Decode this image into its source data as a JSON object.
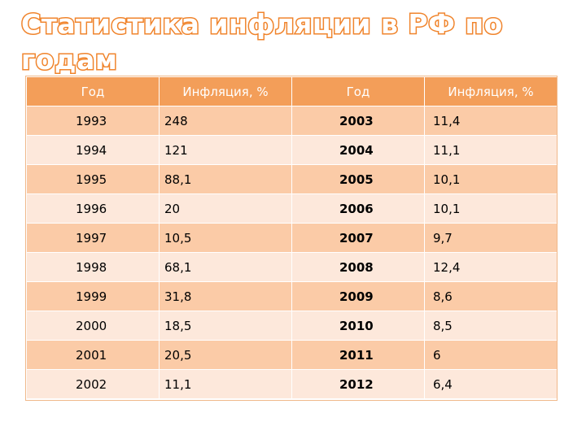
{
  "slide": {
    "title": "Статистика инфляции в РФ по годам"
  },
  "table": {
    "headers": [
      "Год",
      "Инфляция, %",
      "Год",
      "Инфляция, %"
    ],
    "rows": [
      [
        "1993",
        "248",
        "2003",
        "11,4"
      ],
      [
        "1994",
        "121",
        "2004",
        "11,1"
      ],
      [
        "1995",
        "88,1",
        "2005",
        "10,1"
      ],
      [
        "1996",
        "20",
        "2006",
        "10,1"
      ],
      [
        "1997",
        "10,5",
        "2007",
        "9,7"
      ],
      [
        "1998",
        "68,1",
        "2008",
        "12,4"
      ],
      [
        "1999",
        "31,8",
        "2009",
        "8,6"
      ],
      [
        "2000",
        "18,5",
        "2010",
        "8,5"
      ],
      [
        "2001",
        "20,5",
        "2011",
        "6"
      ],
      [
        "2002",
        "11,1",
        "2012",
        "6,4"
      ]
    ]
  },
  "colors": {
    "title_outline": "#f0842c",
    "header_fill": "#f39e59",
    "row_dark": "#fbcba7",
    "row_light": "#fde8db"
  }
}
